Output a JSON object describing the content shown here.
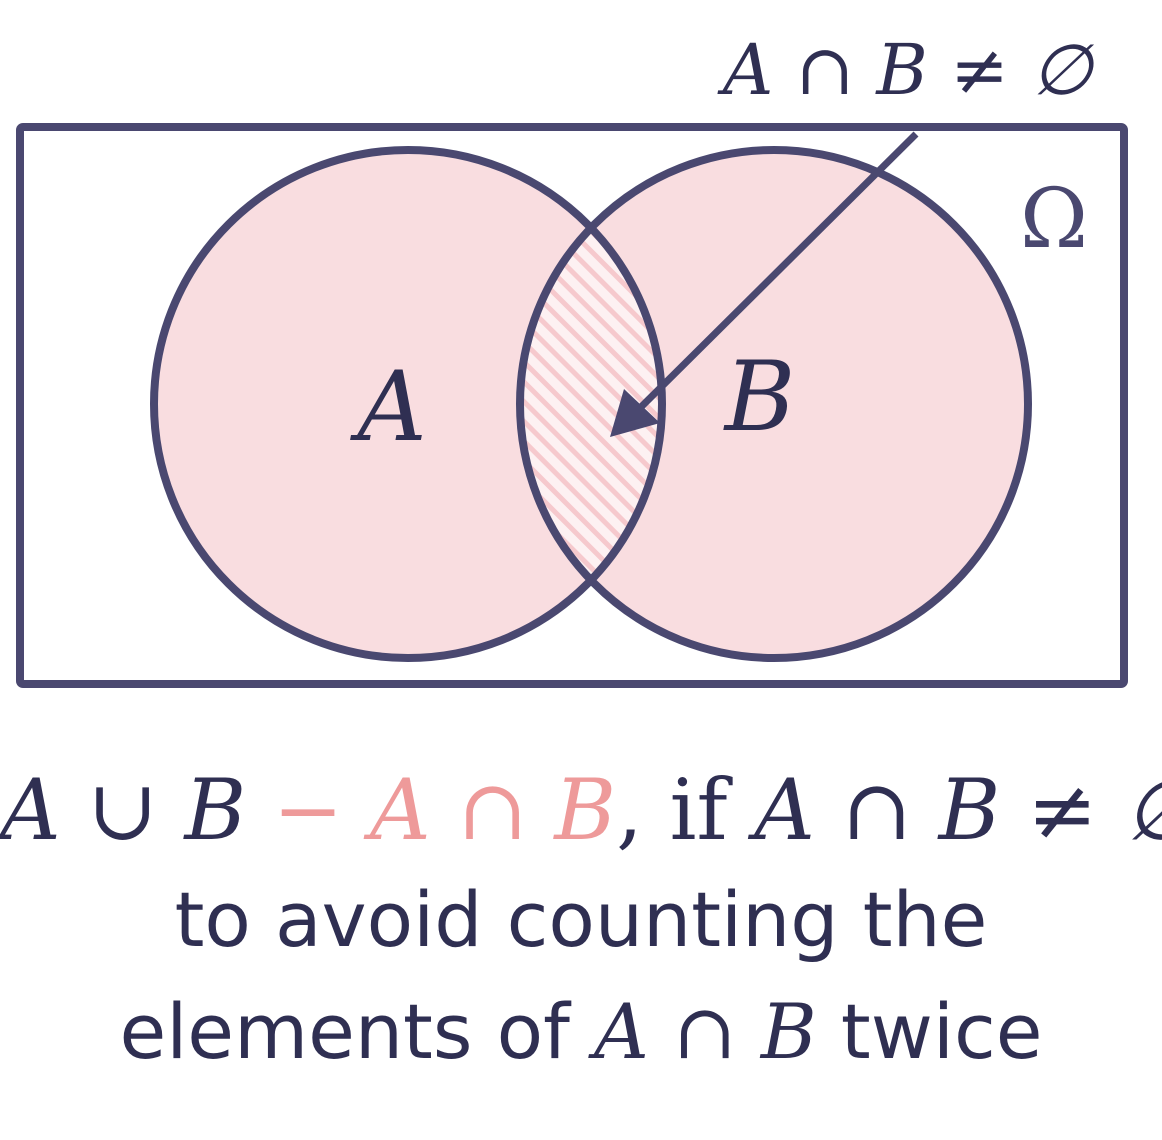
{
  "annotation": {
    "top_label": "A ∩ B ≠ ∅",
    "universe_label": "Ω"
  },
  "sets": {
    "a_label": "A",
    "b_label": "B"
  },
  "formula": {
    "union": "A ∪ B",
    "minus": "−",
    "intersection": "A ∩ B",
    "comma_if": ", if",
    "condition": "A ∩ B ≠ ∅"
  },
  "caption": {
    "line1": "to avoid counting the",
    "line2_prefix": "elements of",
    "line2_math": "A ∩ B",
    "line2_suffix": "twice"
  },
  "colors": {
    "outline": "#4a4870",
    "fill": "#f9dde0",
    "accent_pink": "#ee9a9a",
    "hatch": "#f6c9cd"
  }
}
